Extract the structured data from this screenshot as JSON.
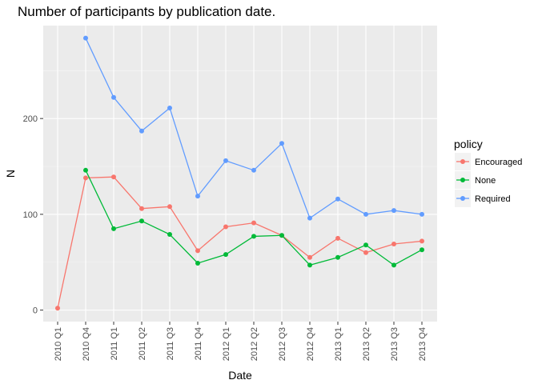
{
  "chart_data": {
    "type": "line",
    "title": "Number of participants by publication date.",
    "xlabel": "Date",
    "ylabel": "N",
    "categories": [
      "2010 Q1",
      "2010 Q4",
      "2011 Q1",
      "2011 Q2",
      "2011 Q3",
      "2011 Q4",
      "2012 Q1",
      "2012 Q2",
      "2012 Q3",
      "2012 Q4",
      "2013 Q1",
      "2013 Q2",
      "2013 Q3",
      "2013 Q4"
    ],
    "yticks": [
      0,
      100,
      200
    ],
    "ylim": [
      -12,
      297
    ],
    "grid": true,
    "legend": {
      "title": "policy",
      "placement": "right"
    },
    "series": [
      {
        "name": "Encouraged",
        "color": "#F8766D",
        "values": [
          2,
          138,
          139,
          106,
          108,
          62,
          87,
          91,
          78,
          55,
          75,
          60,
          69,
          72
        ]
      },
      {
        "name": "None",
        "color": "#00BA38",
        "values": [
          null,
          146,
          85,
          93,
          79,
          49,
          58,
          77,
          78,
          47,
          55,
          68,
          47,
          63
        ]
      },
      {
        "name": "Required",
        "color": "#619CFF",
        "values": [
          null,
          284,
          222,
          187,
          211,
          119,
          156,
          146,
          174,
          96,
          116,
          100,
          104,
          100
        ]
      }
    ]
  }
}
